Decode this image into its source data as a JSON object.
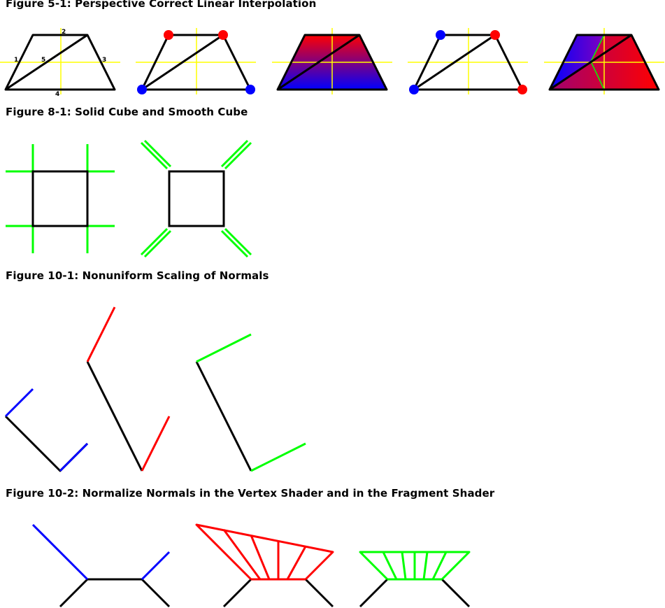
{
  "titles": {
    "fig5_1": "Figure 5-1: Perspective Correct Linear Interpolation",
    "fig8_1": "Figure 8-1: Solid Cube and Smooth Cube",
    "fig10_1": "Figure 10-1: Nonuniform Scaling of Normals",
    "fig10_2": "Figure 10-2: Normalize Normals in the Vertex Shader and in the Fragment Shader"
  },
  "fig5_1_labels": {
    "edge1": "1",
    "edge2": "2",
    "edge3": "3",
    "edge4": "4",
    "diagonal5": "5"
  },
  "colors": {
    "outline": "#000000",
    "guide": "#ffff00",
    "red": "#ff0000",
    "blue": "#0000ff",
    "green": "#00ff00"
  }
}
